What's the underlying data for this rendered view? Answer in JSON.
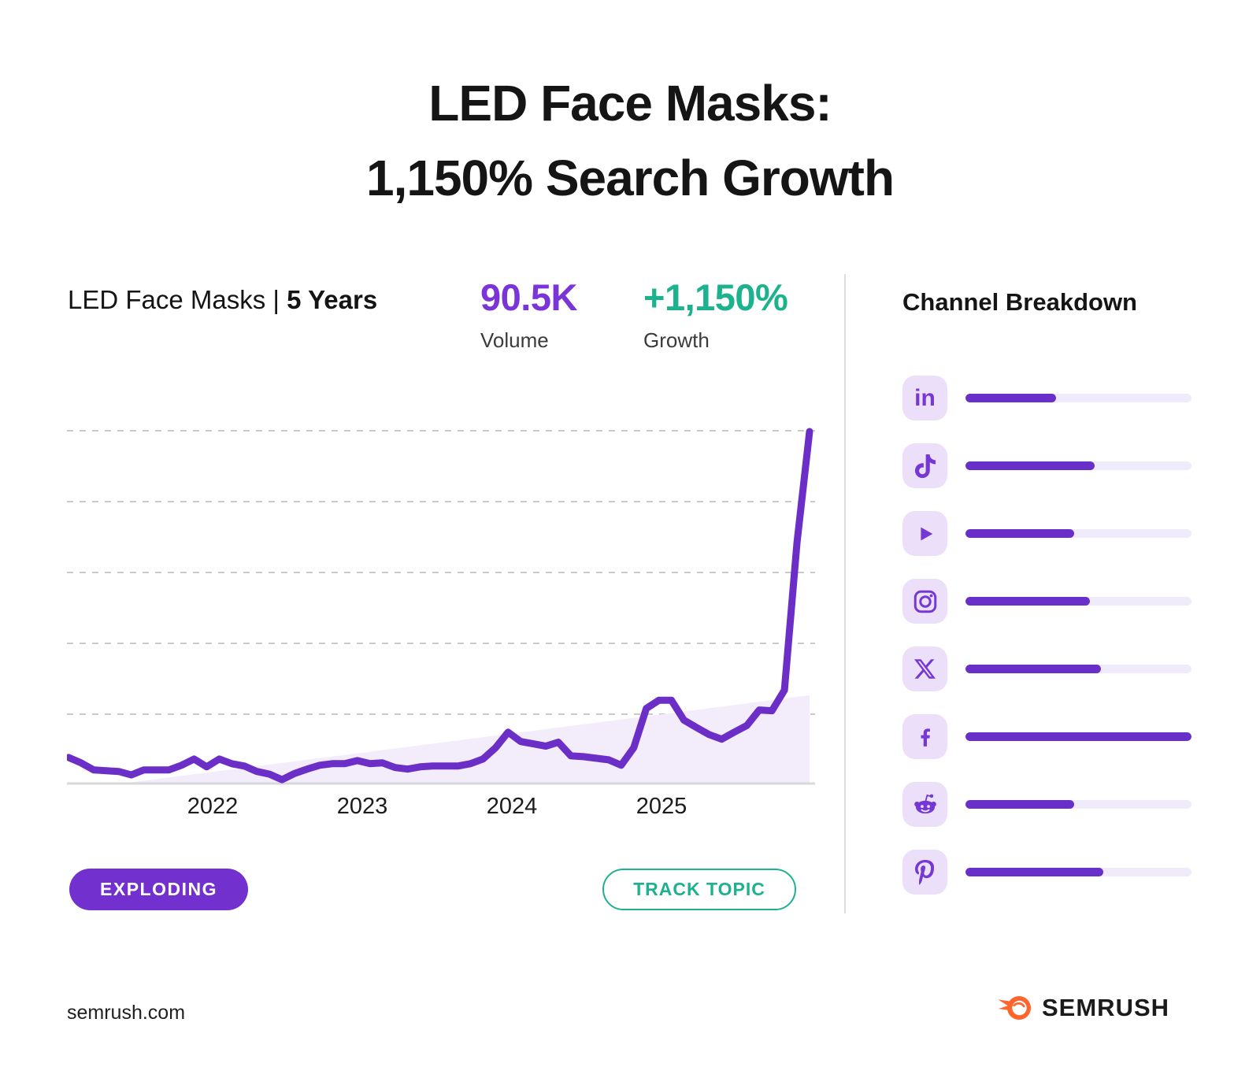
{
  "page": {
    "title_line1": "LED Face Masks:",
    "title_line2": "1,150% Search Growth",
    "footer_url": "semrush.com",
    "brand_name": "SEMRUSH",
    "brand_icon": "semrush-flame-icon",
    "brand_color": "#FF642D"
  },
  "topic_card": {
    "topic_label": "LED Face Masks",
    "separator": "|",
    "period_label": "5 Years",
    "volume_value": "90.5K",
    "volume_label": "Volume",
    "growth_value": "+1,150%",
    "growth_label": "Growth",
    "status_badge": "EXPLODING",
    "track_button": "TRACK TOPIC"
  },
  "chart_data": {
    "type": "line",
    "title": "LED Face Masks monthly search volume, 5 years",
    "x_tick_labels": [
      "2022",
      "2023",
      "2024",
      "2025"
    ],
    "x_tick_positions": [
      185,
      375,
      565,
      755
    ],
    "x_start": "2021-01",
    "x_end": "2025-12",
    "values_k": [
      6.7,
      5.3,
      3.5,
      3.3,
      3.1,
      2.2,
      3.5,
      3.5,
      3.5,
      4.7,
      6.3,
      4.3,
      6.3,
      5.1,
      4.5,
      3.1,
      2.4,
      1.0,
      2.6,
      3.7,
      4.7,
      5.1,
      5.1,
      5.9,
      5.1,
      5.3,
      4.1,
      3.7,
      4.3,
      4.5,
      4.5,
      4.5,
      5.1,
      6.3,
      9.2,
      13.2,
      10.8,
      10.2,
      9.6,
      10.6,
      7.1,
      6.9,
      6.5,
      6.1,
      4.7,
      9.2,
      19.3,
      21.4,
      21.4,
      16.3,
      14.4,
      12.6,
      11.4,
      13.2,
      14.9,
      18.9,
      18.7,
      24.0,
      62.0,
      90.5
    ],
    "peak_value_label": "90.5K",
    "ylim_k": [
      0,
      90.5
    ],
    "gridlines": 5,
    "grid_style": "dashed",
    "legend": "none",
    "line_color": "#6B2EC7",
    "trend_area_color": "#F2ECFB"
  },
  "channel_breakdown": {
    "title": "Channel Breakdown",
    "bar_fill_color": "#6930C9",
    "bar_track_color": "#F0EBFA",
    "channels": [
      {
        "name": "LinkedIn",
        "icon": "linkedin-icon",
        "share_pct": 40
      },
      {
        "name": "TikTok",
        "icon": "tiktok-icon",
        "share_pct": 57
      },
      {
        "name": "YouTube",
        "icon": "youtube-icon",
        "share_pct": 48
      },
      {
        "name": "Instagram",
        "icon": "instagram-icon",
        "share_pct": 55
      },
      {
        "name": "X",
        "icon": "x-icon",
        "share_pct": 60
      },
      {
        "name": "Facebook",
        "icon": "facebook-icon",
        "share_pct": 100
      },
      {
        "name": "Reddit",
        "icon": "reddit-icon",
        "share_pct": 48
      },
      {
        "name": "Pinterest",
        "icon": "pinterest-icon",
        "share_pct": 61
      }
    ]
  }
}
